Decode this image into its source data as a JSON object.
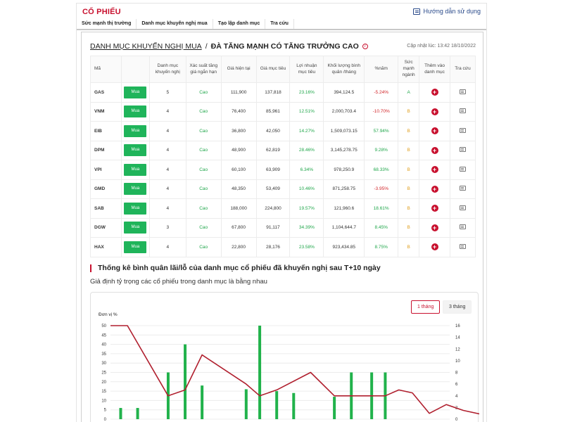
{
  "header": {
    "title": "CỔ PHIẾU",
    "guide_label": "Hướng dẫn sử dụng"
  },
  "tabs": [
    {
      "label": "Sức mạnh thị trường"
    },
    {
      "label": "Danh mục khuyến nghị mua"
    },
    {
      "label": "Tạo lập danh mục"
    },
    {
      "label": "Tra cứu"
    }
  ],
  "heading": {
    "link": "DANH MỤC KHUYẾN NGHỊ MUA",
    "separator": "/",
    "title": "ĐÀ TĂNG MẠNH CÓ TĂNG TRƯỞNG CAO",
    "info_glyph": "i",
    "updated": "Cập nhật lúc: 13:42 18/10/2022"
  },
  "table": {
    "columns": [
      "Mã",
      "",
      "Danh mục khuyến nghị",
      "Xác suất tăng giá ngắn hạn",
      "Giá hiện tại",
      "Giá mục tiêu",
      "Lợi nhuận mục tiêu",
      "Khối lượng bình quân /tháng",
      "%năm",
      "Sức mạnh ngành",
      "Thêm vào danh mục",
      "Tra cứu"
    ],
    "buy_label": "Mua",
    "add_glyph": "+",
    "rows": [
      {
        "symbol": "GAS",
        "portfolio": "5",
        "probability": "Cao",
        "price": "111,900",
        "target": "137,818",
        "profit": "23.16%",
        "volume": "394,124.5",
        "year_pct": "-5.24%",
        "year_color": "red",
        "strength": "A"
      },
      {
        "symbol": "VNM",
        "portfolio": "4",
        "probability": "Cao",
        "price": "76,400",
        "target": "85,961",
        "profit": "12.51%",
        "volume": "2,000,703.4",
        "year_pct": "-10.70%",
        "year_color": "red",
        "strength": "B"
      },
      {
        "symbol": "EIB",
        "portfolio": "4",
        "probability": "Cao",
        "price": "36,800",
        "target": "42,050",
        "profit": "14.27%",
        "volume": "1,509,073.15",
        "year_pct": "57.94%",
        "year_color": "green",
        "strength": "B"
      },
      {
        "symbol": "DPM",
        "portfolio": "4",
        "probability": "Cao",
        "price": "48,900",
        "target": "62,819",
        "profit": "28.46%",
        "volume": "3,145,278.75",
        "year_pct": "9.28%",
        "year_color": "green",
        "strength": "B"
      },
      {
        "symbol": "VPI",
        "portfolio": "4",
        "probability": "Cao",
        "price": "60,100",
        "target": "63,909",
        "profit": "6.34%",
        "volume": "978,250.9",
        "year_pct": "68.33%",
        "year_color": "green",
        "strength": "B"
      },
      {
        "symbol": "GMD",
        "portfolio": "4",
        "probability": "Cao",
        "price": "48,350",
        "target": "53,409",
        "profit": "10.46%",
        "volume": "871,258.75",
        "year_pct": "-3.95%",
        "year_color": "red",
        "strength": "B"
      },
      {
        "symbol": "SAB",
        "portfolio": "4",
        "probability": "Cao",
        "price": "188,000",
        "target": "224,800",
        "profit": "19.57%",
        "volume": "121,960.6",
        "year_pct": "18.61%",
        "year_color": "green",
        "strength": "B"
      },
      {
        "symbol": "DGW",
        "portfolio": "3",
        "probability": "Cao",
        "price": "67,800",
        "target": "91,117",
        "profit": "34.39%",
        "volume": "1,104,644.7",
        "year_pct": "8.45%",
        "year_color": "green",
        "strength": "B"
      },
      {
        "symbol": "HAX",
        "portfolio": "4",
        "probability": "Cao",
        "price": "22,800",
        "target": "28,176",
        "profit": "23.58%",
        "volume": "923,434.85",
        "year_pct": "8.75%",
        "year_color": "green",
        "strength": "B"
      }
    ]
  },
  "stats": {
    "title": "Thống kê bình quân lãi/lỗ của danh mục cổ phiếu đã khuyến nghị sau T+10 ngày",
    "subtitle": "Giả định tỷ trọng các cổ phiếu trong danh mục là bằng nhau",
    "period_1": "1 tháng",
    "period_3": "3 tháng",
    "unit": "Đơn vị %"
  },
  "chart_data": {
    "type": "bar+line",
    "left_axis": {
      "ticks": [
        0,
        5,
        10,
        15,
        20,
        25,
        30,
        35,
        40,
        45,
        50
      ],
      "ylim": [
        0,
        50
      ]
    },
    "right_axis": {
      "ticks": [
        0,
        2,
        4,
        6,
        8,
        10,
        12,
        14,
        16
      ],
      "ylim": [
        0,
        16
      ]
    },
    "bar_color": "#21b24b",
    "line_color": "#b01f2e",
    "bars": [
      6,
      6,
      25,
      40,
      18,
      16,
      50,
      15,
      14,
      12,
      25,
      25,
      25
    ],
    "bar_x": [
      0.03,
      0.08,
      0.17,
      0.22,
      0.27,
      0.4,
      0.44,
      0.49,
      0.54,
      0.66,
      0.71,
      0.77,
      0.81
    ],
    "line": [
      {
        "x": 0.0,
        "y": 16
      },
      {
        "x": 0.05,
        "y": 16
      },
      {
        "x": 0.17,
        "y": 4
      },
      {
        "x": 0.22,
        "y": 5
      },
      {
        "x": 0.27,
        "y": 11
      },
      {
        "x": 0.4,
        "y": 6
      },
      {
        "x": 0.44,
        "y": 4
      },
      {
        "x": 0.49,
        "y": 5
      },
      {
        "x": 0.59,
        "y": 8
      },
      {
        "x": 0.66,
        "y": 4
      },
      {
        "x": 0.81,
        "y": 4
      },
      {
        "x": 0.85,
        "y": 5
      },
      {
        "x": 0.89,
        "y": 4.5
      },
      {
        "x": 0.94,
        "y": 1
      },
      {
        "x": 0.99,
        "y": 2.5
      },
      {
        "x": 1.04,
        "y": 1.5
      },
      {
        "x": 1.16,
        "y": 0
      },
      {
        "x": 1.21,
        "y": 1
      }
    ]
  }
}
